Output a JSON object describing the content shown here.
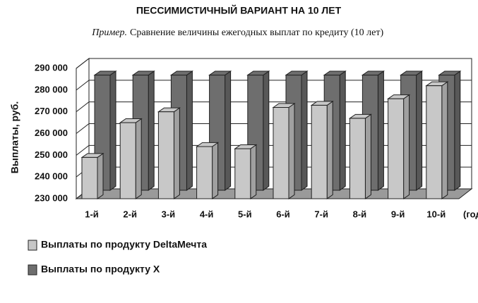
{
  "chart_data": {
    "type": "bar3d",
    "title": "ПЕССИМИСТИЧНЫЙ ВАРИАНТ НА 10 ЛЕТ",
    "annotation": "Пример.",
    "subtitle": "Сравнение величины ежегодных выплат по кредиту (10 лет)",
    "y_label": "Выплаты, руб.",
    "x_label": "(год)",
    "categories": [
      "1-й",
      "2-й",
      "3-й",
      "4-й",
      "5-й",
      "6-й",
      "7-й",
      "8-й",
      "9-й",
      "10-й"
    ],
    "series": [
      {
        "name": "Выплаты по продукту DeltaМечта",
        "color": "#c8c8c8",
        "values": [
          249000,
          265000,
          270000,
          254000,
          253000,
          272000,
          273000,
          267000,
          276000,
          282000
        ]
      },
      {
        "name": "Выплаты по продукту X",
        "color": "#6e6e6e",
        "values": [
          283000,
          283000,
          283000,
          283000,
          283000,
          283000,
          283000,
          283000,
          283000,
          283000
        ]
      }
    ],
    "ylim": [
      230000,
      290000
    ],
    "yticks": [
      {
        "value": 230000,
        "label": "230 000"
      },
      {
        "value": 240000,
        "label": "240 000"
      },
      {
        "value": 250000,
        "label": "250 000"
      },
      {
        "value": 260000,
        "label": "260 000"
      },
      {
        "value": 270000,
        "label": "270 000"
      },
      {
        "value": 280000,
        "label": "280 000"
      },
      {
        "value": 290000,
        "label": "290 000"
      }
    ],
    "grid": true
  }
}
